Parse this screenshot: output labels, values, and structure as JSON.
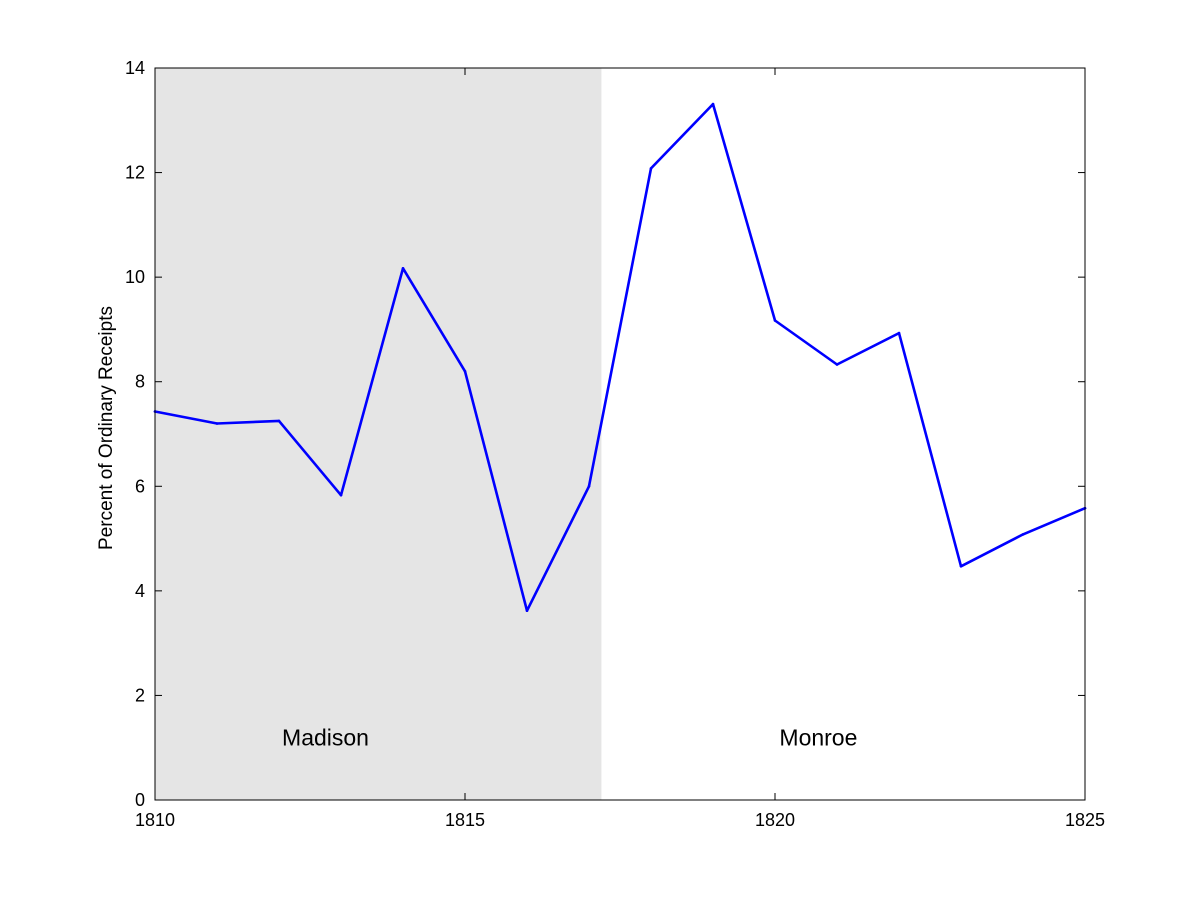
{
  "chart_data": {
    "type": "line",
    "title": "",
    "xlabel": "",
    "ylabel": "Percent of Ordinary Receipts",
    "xlim": [
      1810,
      1825
    ],
    "ylim": [
      0,
      14
    ],
    "xticks": [
      1810,
      1815,
      1820,
      1825
    ],
    "yticks": [
      0,
      2,
      4,
      6,
      8,
      10,
      12,
      14
    ],
    "grid": false,
    "series": [
      {
        "color": "#0000ff",
        "x": [
          1810,
          1811,
          1812,
          1813,
          1814,
          1815,
          1816,
          1817,
          1818,
          1819,
          1820,
          1821,
          1822,
          1823,
          1824,
          1825
        ],
        "y": [
          7.43,
          7.2,
          7.25,
          5.83,
          10.17,
          8.2,
          3.62,
          6.0,
          12.08,
          13.31,
          9.17,
          8.33,
          8.93,
          4.47,
          5.08,
          5.58
        ]
      }
    ],
    "shaded_regions": [
      {
        "x_start": 1810,
        "x_end": 1817.2,
        "color": "#e5e5e5"
      }
    ],
    "annotations": [
      {
        "text": "Madison",
        "x": 1812.75,
        "y": 1.2
      },
      {
        "text": "Monroe",
        "x": 1820.7,
        "y": 1.2
      }
    ]
  }
}
